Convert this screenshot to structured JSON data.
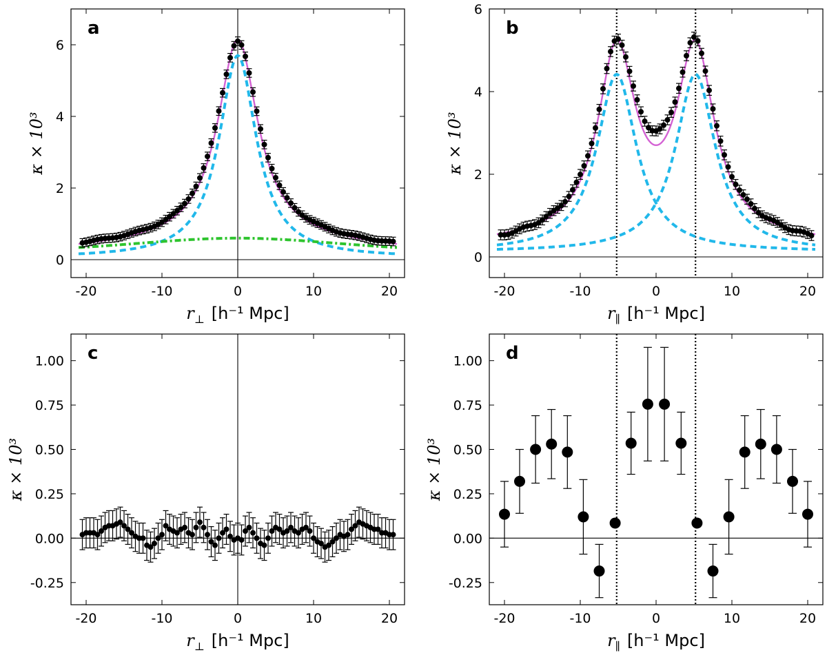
{
  "colors": {
    "data": "#000000",
    "total_model": "#d462d4",
    "component": "#21b8ea",
    "background": "#2ec42e",
    "axis": "#000000"
  },
  "chart_data": [
    {
      "panel_label": "a",
      "type": "scatter",
      "xlabel_symbol": "r",
      "xlabel_sub": "⊥",
      "xlabel_unit": "[h⁻¹ Mpc]",
      "ylabel": "κ × 10³",
      "xlim": [
        -22,
        22
      ],
      "ylim": [
        -0.5,
        7.0
      ],
      "xticks": [
        -20,
        -10,
        0,
        10,
        20
      ],
      "xtick_labels": [
        "-20",
        "-10",
        "0",
        "10",
        "20"
      ],
      "yticks": [
        0,
        2,
        4,
        6
      ],
      "ytick_labels": [
        "0",
        "2",
        "4",
        "6"
      ],
      "hlines": [
        0
      ],
      "vlines_solid": [
        0
      ],
      "vlines_dotted": [],
      "points": {
        "name": "measured κ",
        "style": "small",
        "x_start": -20.5,
        "x_step": 0.5,
        "count": 83,
        "values_key": "a_points"
      },
      "series": [
        {
          "name": "total model",
          "style": "solid",
          "color_key": "total_model",
          "expr": "a_total"
        },
        {
          "name": "central component",
          "style": "dashed",
          "color_key": "component",
          "expr": "a_central"
        },
        {
          "name": "background",
          "style": "dashdot",
          "color_key": "background",
          "expr": "a_bg"
        }
      ]
    },
    {
      "panel_label": "b",
      "type": "scatter",
      "xlabel_symbol": "r",
      "xlabel_sub": "∥",
      "xlabel_unit": "[h⁻¹ Mpc]",
      "ylabel": "κ × 10³",
      "xlim": [
        -22,
        22
      ],
      "ylim": [
        -0.5,
        6.0
      ],
      "xticks": [
        -20,
        -10,
        0,
        10,
        20
      ],
      "xtick_labels": [
        "-20",
        "-10",
        "0",
        "10",
        "20"
      ],
      "yticks": [
        0,
        2,
        4,
        6
      ],
      "ytick_labels": [
        "0",
        "2",
        "4",
        "6"
      ],
      "hlines": [
        0
      ],
      "vlines_solid": [],
      "vlines_dotted": [
        -5.2,
        5.2
      ],
      "points": {
        "name": "measured κ",
        "style": "small",
        "x_start": -20.5,
        "x_step": 0.5,
        "count": 83,
        "values_key": "b_points"
      },
      "series": [
        {
          "name": "total model",
          "style": "solid",
          "color_key": "total_model",
          "expr": "b_total"
        },
        {
          "name": "left halo",
          "style": "dashed",
          "color_key": "component",
          "expr": "b_left"
        },
        {
          "name": "right halo",
          "style": "dashed",
          "color_key": "component",
          "expr": "b_right"
        }
      ]
    },
    {
      "panel_label": "c",
      "type": "scatter",
      "xlabel_symbol": "r",
      "xlabel_sub": "⊥",
      "xlabel_unit": "[h⁻¹ Mpc]",
      "ylabel": "κ × 10³",
      "xlim": [
        -22,
        22
      ],
      "ylim": [
        -0.375,
        1.15
      ],
      "xticks": [
        -20,
        -10,
        0,
        10,
        20
      ],
      "xtick_labels": [
        "-20",
        "-10",
        "0",
        "10",
        "20"
      ],
      "yticks": [
        -0.25,
        0,
        0.25,
        0.5,
        0.75,
        1.0
      ],
      "ytick_labels": [
        "-0.25",
        "0.00",
        "0.25",
        "0.50",
        "0.75",
        "1.00"
      ],
      "hlines": [
        0
      ],
      "vlines_solid": [
        0
      ],
      "vlines_dotted": [],
      "points": {
        "name": "residual κ",
        "style": "small",
        "x": [
          -20.5,
          -20,
          -19.5,
          -19,
          -18.5,
          -18,
          -17.5,
          -17,
          -16.5,
          -16,
          -15.5,
          -15,
          -14.5,
          -14,
          -13.5,
          -13,
          -12.5,
          -12,
          -11.5,
          -11,
          -10.5,
          -10,
          -9.5,
          -9,
          -8.5,
          -8,
          -7.5,
          -7,
          -6.5,
          -6,
          -5.5,
          -5,
          -4.5,
          -4,
          -3.5,
          -3,
          -2.5,
          -2,
          -1.5,
          -1,
          -0.5,
          0,
          0.5,
          1,
          1.5,
          2,
          2.5,
          3,
          3.5,
          4,
          4.5,
          5,
          5.5,
          6,
          6.5,
          7,
          7.5,
          8,
          8.5,
          9,
          9.5,
          10,
          10.5,
          11,
          11.5,
          12,
          12.5,
          13,
          13.5,
          14,
          14.5,
          15,
          15.5,
          16,
          16.5,
          17,
          17.5,
          18,
          18.5,
          19,
          19.5,
          20,
          20.5
        ],
        "y": [
          0.02,
          0.03,
          0.03,
          0.03,
          0.02,
          0.04,
          0.06,
          0.07,
          0.07,
          0.08,
          0.09,
          0.07,
          0.05,
          0.03,
          0.01,
          0.0,
          0.0,
          -0.04,
          -0.05,
          -0.03,
          0.0,
          0.02,
          0.07,
          0.05,
          0.04,
          0.03,
          0.05,
          0.06,
          0.03,
          0.02,
          0.06,
          0.09,
          0.06,
          0.02,
          -0.02,
          -0.04,
          0.0,
          0.03,
          0.05,
          0.01,
          -0.01,
          0.0,
          -0.01,
          0.04,
          0.06,
          0.03,
          0.0,
          -0.03,
          -0.04,
          0.0,
          0.04,
          0.06,
          0.05,
          0.03,
          0.04,
          0.06,
          0.04,
          0.03,
          0.05,
          0.06,
          0.04,
          0.0,
          -0.02,
          -0.03,
          -0.05,
          -0.04,
          -0.02,
          0.0,
          0.02,
          0.01,
          0.02,
          0.05,
          0.07,
          0.09,
          0.08,
          0.07,
          0.06,
          0.05,
          0.05,
          0.03,
          0.03,
          0.02,
          0.02
        ],
        "err": 0.085
      },
      "series": []
    },
    {
      "panel_label": "d",
      "type": "scatter",
      "xlabel_symbol": "r",
      "xlabel_sub": "∥",
      "xlabel_unit": "[h⁻¹ Mpc]",
      "ylabel": "κ × 10³",
      "xlim": [
        -22,
        22
      ],
      "ylim": [
        -0.375,
        1.15
      ],
      "xticks": [
        -20,
        -10,
        0,
        10,
        20
      ],
      "xtick_labels": [
        "-20",
        "-10",
        "0",
        "10",
        "20"
      ],
      "yticks": [
        -0.25,
        0,
        0.25,
        0.5,
        0.75,
        1.0
      ],
      "ytick_labels": [
        "-0.25",
        "0.00",
        "0.25",
        "0.50",
        "0.75",
        "1.00"
      ],
      "hlines": [
        0
      ],
      "vlines_solid": [],
      "vlines_dotted": [
        -5.2,
        5.2
      ],
      "points": {
        "name": "residual κ",
        "style": "large",
        "x": [
          -20.0,
          -18.0,
          -15.9,
          -13.8,
          -11.7,
          -9.6,
          -7.5,
          -5.4,
          -3.3,
          -1.1,
          1.1,
          3.3,
          5.4,
          7.5,
          9.6,
          11.7,
          13.8,
          15.9,
          18.0,
          20.0
        ],
        "y": [
          0.135,
          0.32,
          0.5,
          0.53,
          0.485,
          0.12,
          -0.185,
          0.085,
          0.535,
          0.755,
          0.755,
          0.535,
          0.085,
          -0.185,
          0.12,
          0.485,
          0.53,
          0.5,
          0.32,
          0.135
        ],
        "err": [
          0.185,
          0.18,
          0.19,
          0.195,
          0.205,
          0.21,
          0.15,
          0.0,
          0.175,
          0.32,
          0.32,
          0.175,
          0.0,
          0.15,
          0.21,
          0.205,
          0.195,
          0.19,
          0.18,
          0.185
        ]
      },
      "series": []
    }
  ]
}
